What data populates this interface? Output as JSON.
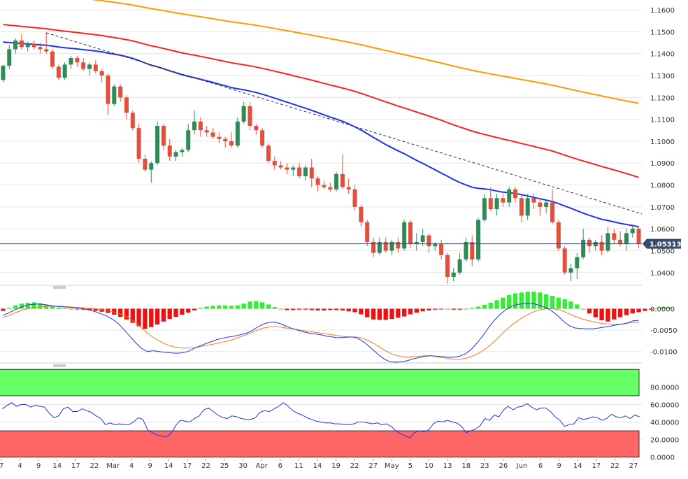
{
  "chart_data": [
    {
      "type": "candlestick",
      "title": "",
      "current_price": "1.053130",
      "y_ticks": [
        "1.1600",
        "1.1500",
        "1.1400",
        "1.1300",
        "1.1200",
        "1.1100",
        "1.1000",
        "1.0900",
        "1.0800",
        "1.0700",
        "1.0600",
        "1.0500",
        "1.0400"
      ],
      "ylim": [
        1.0345,
        1.1645
      ],
      "x_labels": [
        "7",
        "4",
        "9",
        "14",
        "17",
        "22",
        "Mar",
        "4",
        "9",
        "14",
        "17",
        "22",
        "25",
        "30",
        "Apr",
        "6",
        "11",
        "14",
        "19",
        "22",
        "27",
        "May",
        "5",
        "10",
        "13",
        "18",
        "23",
        "26",
        "Jun",
        "6",
        "9",
        "14",
        "17",
        "22",
        "27"
      ],
      "series": [
        {
          "name": "SMA 200",
          "color": "#ff9900"
        },
        {
          "name": "SMA 100",
          "color": "#ff2222"
        },
        {
          "name": "SMA 55",
          "color": "#2233ee"
        }
      ],
      "trendline": {
        "style": "dashed",
        "start": 1.1495,
        "end": 1.0668
      },
      "candles": [
        [
          1.128,
          1.135,
          1.127,
          1.1345
        ],
        [
          1.1345,
          1.144,
          1.133,
          1.142
        ],
        [
          1.142,
          1.147,
          1.14,
          1.146
        ],
        [
          1.146,
          1.149,
          1.142,
          1.143
        ],
        [
          1.143,
          1.1455,
          1.141,
          1.1445
        ],
        [
          1.1445,
          1.146,
          1.142,
          1.143
        ],
        [
          1.143,
          1.145,
          1.14,
          1.142
        ],
        [
          1.142,
          1.15,
          1.14,
          1.141
        ],
        [
          1.141,
          1.142,
          1.133,
          1.134
        ],
        [
          1.134,
          1.135,
          1.128,
          1.129
        ],
        [
          1.129,
          1.136,
          1.128,
          1.135
        ],
        [
          1.135,
          1.139,
          1.133,
          1.138
        ],
        [
          1.138,
          1.139,
          1.134,
          1.136
        ],
        [
          1.136,
          1.138,
          1.132,
          1.133
        ],
        [
          1.133,
          1.136,
          1.13,
          1.135
        ],
        [
          1.135,
          1.137,
          1.131,
          1.132
        ],
        [
          1.132,
          1.133,
          1.127,
          1.13
        ],
        [
          1.13,
          1.131,
          1.112,
          1.117
        ],
        [
          1.117,
          1.126,
          1.116,
          1.125
        ],
        [
          1.125,
          1.126,
          1.118,
          1.12
        ],
        [
          1.12,
          1.121,
          1.11,
          1.113
        ],
        [
          1.113,
          1.114,
          1.105,
          1.106
        ],
        [
          1.106,
          1.108,
          1.09,
          1.092
        ],
        [
          1.092,
          1.094,
          1.086,
          1.087
        ],
        [
          1.087,
          1.091,
          1.081,
          1.09
        ],
        [
          1.09,
          1.109,
          1.089,
          1.107
        ],
        [
          1.107,
          1.108,
          1.096,
          1.098
        ],
        [
          1.098,
          1.101,
          1.091,
          1.093
        ],
        [
          1.093,
          1.096,
          1.091,
          1.095
        ],
        [
          1.095,
          1.097,
          1.093,
          1.096
        ],
        [
          1.096,
          1.108,
          1.095,
          1.105
        ],
        [
          1.105,
          1.114,
          1.103,
          1.109
        ],
        [
          1.109,
          1.111,
          1.102,
          1.105
        ],
        [
          1.105,
          1.107,
          1.102,
          1.104
        ],
        [
          1.104,
          1.106,
          1.101,
          1.102
        ],
        [
          1.102,
          1.104,
          1.099,
          1.101
        ],
        [
          1.101,
          1.102,
          1.097,
          1.1
        ],
        [
          1.1,
          1.104,
          1.097,
          1.098
        ],
        [
          1.098,
          1.111,
          1.097,
          1.109
        ],
        [
          1.109,
          1.118,
          1.108,
          1.116
        ],
        [
          1.116,
          1.118,
          1.105,
          1.107
        ],
        [
          1.107,
          1.108,
          1.103,
          1.105
        ],
        [
          1.105,
          1.106,
          1.097,
          1.098
        ],
        [
          1.098,
          1.099,
          1.09,
          1.091
        ],
        [
          1.091,
          1.093,
          1.087,
          1.089
        ],
        [
          1.089,
          1.091,
          1.087,
          1.088
        ],
        [
          1.088,
          1.09,
          1.085,
          1.087
        ],
        [
          1.087,
          1.089,
          1.084,
          1.088
        ],
        [
          1.088,
          1.09,
          1.083,
          1.084
        ],
        [
          1.084,
          1.089,
          1.082,
          1.088
        ],
        [
          1.088,
          1.092,
          1.079,
          1.083
        ],
        [
          1.083,
          1.084,
          1.077,
          1.08
        ],
        [
          1.08,
          1.082,
          1.078,
          1.079
        ],
        [
          1.079,
          1.081,
          1.077,
          1.078
        ],
        [
          1.078,
          1.086,
          1.077,
          1.085
        ],
        [
          1.085,
          1.094,
          1.078,
          1.079
        ],
        [
          1.079,
          1.083,
          1.076,
          1.078
        ],
        [
          1.078,
          1.08,
          1.068,
          1.07
        ],
        [
          1.07,
          1.071,
          1.061,
          1.063
        ],
        [
          1.063,
          1.064,
          1.052,
          1.054
        ],
        [
          1.054,
          1.056,
          1.047,
          1.049
        ],
        [
          1.049,
          1.056,
          1.048,
          1.054
        ],
        [
          1.054,
          1.056,
          1.049,
          1.05
        ],
        [
          1.05,
          1.055,
          1.048,
          1.054
        ],
        [
          1.054,
          1.056,
          1.049,
          1.051
        ],
        [
          1.051,
          1.064,
          1.05,
          1.063
        ],
        [
          1.063,
          1.064,
          1.051,
          1.053
        ],
        [
          1.053,
          1.058,
          1.05,
          1.054
        ],
        [
          1.054,
          1.06,
          1.052,
          1.057
        ],
        [
          1.057,
          1.058,
          1.049,
          1.052
        ],
        [
          1.052,
          1.054,
          1.05,
          1.053
        ],
        [
          1.053,
          1.055,
          1.046,
          1.048
        ],
        [
          1.048,
          1.049,
          1.035,
          1.038
        ],
        [
          1.038,
          1.042,
          1.036,
          1.04
        ],
        [
          1.04,
          1.049,
          1.039,
          1.046
        ],
        [
          1.046,
          1.056,
          1.045,
          1.054
        ],
        [
          1.054,
          1.057,
          1.043,
          1.046
        ],
        [
          1.046,
          1.065,
          1.045,
          1.064
        ],
        [
          1.064,
          1.076,
          1.063,
          1.074
        ],
        [
          1.074,
          1.079,
          1.068,
          1.069
        ],
        [
          1.069,
          1.076,
          1.066,
          1.074
        ],
        [
          1.074,
          1.076,
          1.07,
          1.072
        ],
        [
          1.072,
          1.079,
          1.07,
          1.078
        ],
        [
          1.078,
          1.079,
          1.072,
          1.074
        ],
        [
          1.074,
          1.076,
          1.063,
          1.066
        ],
        [
          1.066,
          1.076,
          1.064,
          1.074
        ],
        [
          1.074,
          1.076,
          1.069,
          1.072
        ],
        [
          1.072,
          1.074,
          1.066,
          1.07
        ],
        [
          1.07,
          1.073,
          1.067,
          1.072
        ],
        [
          1.072,
          1.078,
          1.062,
          1.063
        ],
        [
          1.063,
          1.064,
          1.05,
          1.051
        ],
        [
          1.051,
          1.052,
          1.039,
          1.04
        ],
        [
          1.04,
          1.044,
          1.036,
          1.042
        ],
        [
          1.042,
          1.049,
          1.037,
          1.047
        ],
        [
          1.047,
          1.06,
          1.046,
          1.055
        ],
        [
          1.055,
          1.056,
          1.049,
          1.052
        ],
        [
          1.052,
          1.055,
          1.05,
          1.054
        ],
        [
          1.054,
          1.057,
          1.048,
          1.05
        ],
        [
          1.05,
          1.061,
          1.049,
          1.058
        ],
        [
          1.058,
          1.06,
          1.053,
          1.055
        ],
        [
          1.055,
          1.059,
          1.052,
          1.053
        ],
        [
          1.053,
          1.06,
          1.05,
          1.058
        ],
        [
          1.058,
          1.062,
          1.056,
          1.06
        ],
        [
          1.06,
          1.061,
          1.051,
          1.0531
        ]
      ]
    },
    {
      "type": "histogram-macd",
      "y_ticks": [
        "0.0000",
        "-0.0050",
        "-0.0100"
      ],
      "ylim": [
        -0.0125,
        0.0045
      ],
      "series": [
        {
          "name": "MACD",
          "color": "#2233ee"
        },
        {
          "name": "Signal",
          "color": "#ff7722"
        },
        {
          "name": "Histogram",
          "colors": {
            "positive": "#33ee33",
            "negative": "#ee1111"
          }
        }
      ],
      "histogram": [
        -0.0005,
        0.0002,
        0.0008,
        0.0012,
        0.0014,
        0.0015,
        0.0013,
        0.001,
        0.0006,
        0.0003,
        0.0001,
        0.0,
        -0.0001,
        -0.0002,
        -0.0003,
        -0.0005,
        -0.0007,
        -0.001,
        -0.0014,
        -0.0019,
        -0.0025,
        -0.0033,
        -0.0041,
        -0.0047,
        -0.0043,
        -0.0037,
        -0.003,
        -0.0024,
        -0.0019,
        -0.0014,
        -0.0009,
        -0.0004,
        0.0002,
        0.0005,
        0.0007,
        0.0008,
        0.0008,
        0.0007,
        0.0008,
        0.0012,
        0.0017,
        0.0018,
        0.0015,
        0.001,
        0.0004,
        0.0,
        -0.0003,
        -0.0003,
        -0.0002,
        -0.0002,
        -0.0003,
        -0.0004,
        -0.0004,
        -0.0003,
        -0.0003,
        -0.0004,
        -0.0006,
        -0.0008,
        -0.0013,
        -0.002,
        -0.0025,
        -0.0026,
        -0.0026,
        -0.0024,
        -0.0021,
        -0.0018,
        -0.0013,
        -0.0009,
        -0.0006,
        -0.0004,
        -0.0002,
        -0.0001,
        0.0,
        -0.0002,
        -0.0002,
        0.0,
        0.0002,
        0.0005,
        0.0009,
        0.0014,
        0.002,
        0.0026,
        0.0032,
        0.0036,
        0.0038,
        0.004,
        0.004,
        0.0038,
        0.0034,
        0.003,
        0.0026,
        0.0022,
        0.0017,
        0.001,
        0.0,
        -0.0011,
        -0.002,
        -0.0027,
        -0.003,
        -0.0025,
        -0.002,
        -0.0015,
        -0.0011,
        -0.0008,
        -0.0005,
        -0.0002,
        0.0002,
        0.0004,
        0.0003
      ],
      "macd": [
        -0.0015,
        -0.001,
        -0.0003,
        0.0003,
        0.0008,
        0.001,
        0.0011,
        0.001,
        0.0008,
        0.0006,
        0.0005,
        0.0004,
        0.0003,
        0.0002,
        0.0,
        -0.0003,
        -0.0007,
        -0.0012,
        -0.0017,
        -0.0025,
        -0.0035,
        -0.005,
        -0.0065,
        -0.008,
        -0.0093,
        -0.01,
        -0.0098,
        -0.01,
        -0.0102,
        -0.0103,
        -0.0104,
        -0.0103,
        -0.01,
        -0.0093,
        -0.0087,
        -0.0082,
        -0.0077,
        -0.0072,
        -0.0069,
        -0.0066,
        -0.0064,
        -0.0061,
        -0.0058,
        -0.0052,
        -0.0043,
        -0.0036,
        -0.0032,
        -0.0031,
        -0.0035,
        -0.0041,
        -0.0046,
        -0.005,
        -0.0054,
        -0.0057,
        -0.0059,
        -0.0061,
        -0.0064,
        -0.0066,
        -0.0068,
        -0.0067,
        -0.0066,
        -0.0067,
        -0.0074,
        -0.0084,
        -0.0096,
        -0.0108,
        -0.0118,
        -0.0124,
        -0.0125,
        -0.0124,
        -0.0121,
        -0.0117,
        -0.0114,
        -0.0111,
        -0.011,
        -0.0111,
        -0.0112,
        -0.0113,
        -0.0113,
        -0.0111,
        -0.0105,
        -0.0095,
        -0.008,
        -0.0063,
        -0.0044,
        -0.0027,
        -0.0013,
        -0.0002,
        0.0006,
        0.001,
        0.0012,
        0.0013,
        0.0011,
        0.0007,
        0.0002,
        -0.0006,
        -0.0017,
        -0.003,
        -0.004,
        -0.0045,
        -0.0046,
        -0.0047,
        -0.0047,
        -0.0045,
        -0.0043,
        -0.0041,
        -0.0038,
        -0.0036,
        -0.0033,
        -0.0028,
        -0.0027
      ],
      "signal": [
        -0.002,
        -0.0016,
        -0.001,
        -0.0005,
        -0.0001,
        0.0002,
        0.0004,
        0.0005,
        0.0006,
        0.0006,
        0.0006,
        0.0005,
        0.0004,
        0.0003,
        0.0002,
        0.0001,
        0.0,
        -0.0002,
        -0.0004,
        -0.0007,
        -0.0011,
        -0.0016,
        -0.0024,
        -0.0033,
        -0.0045,
        -0.0057,
        -0.0067,
        -0.0075,
        -0.0082,
        -0.0087,
        -0.009,
        -0.0092,
        -0.0092,
        -0.0091,
        -0.0089,
        -0.0086,
        -0.0084,
        -0.0081,
        -0.0078,
        -0.0075,
        -0.0071,
        -0.0066,
        -0.0061,
        -0.0056,
        -0.005,
        -0.0045,
        -0.0043,
        -0.0042,
        -0.0043,
        -0.0045,
        -0.0047,
        -0.0049,
        -0.0051,
        -0.0053,
        -0.0055,
        -0.0057,
        -0.0059,
        -0.0061,
        -0.0063,
        -0.0065,
        -0.0066,
        -0.0066,
        -0.0068,
        -0.0073,
        -0.008,
        -0.0088,
        -0.0097,
        -0.0104,
        -0.0109,
        -0.0112,
        -0.0113,
        -0.0112,
        -0.0111,
        -0.011,
        -0.011,
        -0.0112,
        -0.0114,
        -0.0116,
        -0.0118,
        -0.0118,
        -0.0116,
        -0.0112,
        -0.0106,
        -0.0098,
        -0.0088,
        -0.0076,
        -0.0063,
        -0.005,
        -0.0038,
        -0.0028,
        -0.0019,
        -0.0012,
        -0.0006,
        -0.0002,
        0.0,
        0.0,
        -0.0002,
        -0.0006,
        -0.0012,
        -0.0018,
        -0.0023,
        -0.0027,
        -0.003,
        -0.0033,
        -0.0035,
        -0.0036,
        -0.0036,
        -0.0036,
        -0.0034,
        -0.0032,
        -0.0031
      ]
    },
    {
      "type": "line-oscillator",
      "y_ticks": [
        "80.0000",
        "60.0000",
        "40.0000",
        "20.0000",
        "0.0000"
      ],
      "ylim": [
        -1,
        101
      ],
      "zones": [
        {
          "name": "overbought",
          "from": 70,
          "to": 100,
          "color": "#66ff66"
        },
        {
          "name": "oversold",
          "from": 0,
          "to": 30,
          "color": "#ff6666"
        }
      ],
      "series": [
        {
          "name": "RSI",
          "color": "#2233ee",
          "values": [
            55,
            59,
            62,
            58,
            60,
            60,
            57,
            59,
            58,
            57,
            50,
            45,
            47,
            55,
            57,
            52,
            52,
            55,
            53,
            51,
            47,
            44,
            37,
            39,
            37,
            38,
            37,
            37,
            40,
            45,
            43,
            31,
            28,
            25,
            24,
            23,
            27,
            36,
            42,
            41,
            40,
            44,
            47,
            54,
            56,
            52,
            48,
            45,
            44,
            47,
            46,
            44,
            43,
            43,
            45,
            51,
            53,
            52,
            55,
            58,
            62,
            58,
            53,
            50,
            48,
            45,
            43,
            41,
            40,
            39,
            39,
            38,
            38,
            37,
            37,
            38,
            40,
            40,
            39,
            38,
            39,
            37,
            38,
            35,
            30,
            27,
            24,
            22,
            28,
            30,
            29,
            31,
            38,
            41,
            40,
            42,
            40,
            39,
            35,
            28,
            30,
            32,
            36,
            44,
            42,
            48,
            46,
            54,
            58,
            54,
            57,
            58,
            61,
            57,
            54,
            56,
            56,
            52,
            46,
            42,
            35,
            37,
            38,
            45,
            43,
            44,
            46,
            45,
            42,
            44,
            49,
            46,
            45,
            47,
            44,
            48,
            46
          ]
        }
      ]
    }
  ]
}
